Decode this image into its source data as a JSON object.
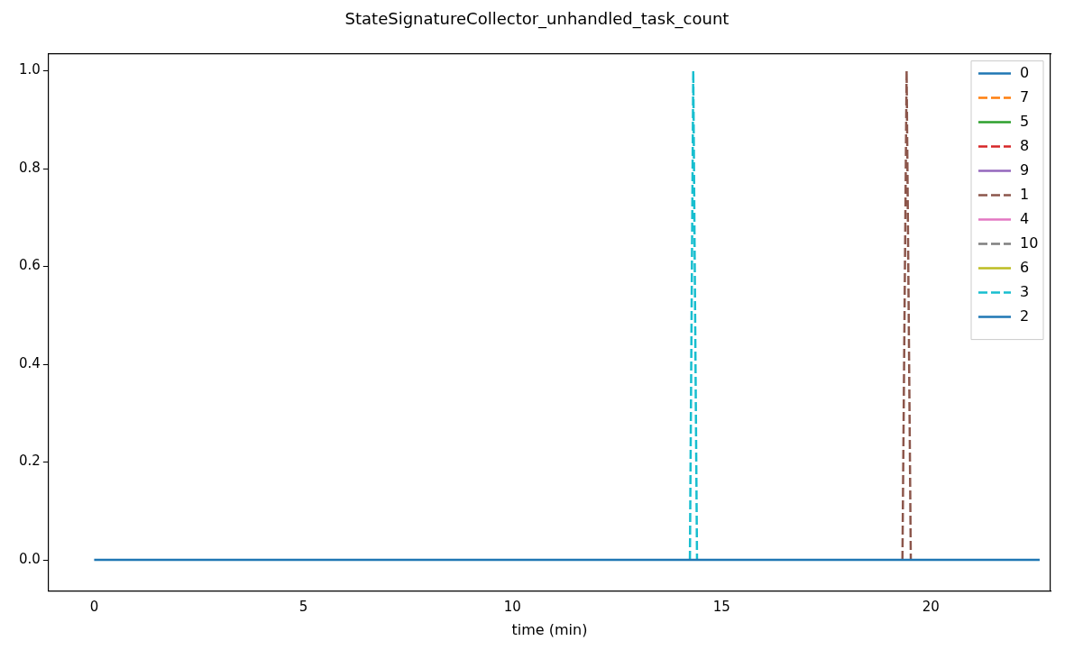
{
  "chart_data": {
    "type": "line",
    "title": "StateSignatureCollector_unhandled_task_count",
    "xlabel": "time (min)",
    "x": [
      0,
      14.24,
      14.32,
      14.41,
      19.32,
      19.42,
      19.52,
      22.6
    ],
    "series": [
      {
        "name": "0",
        "color": "#1f77b4",
        "line_style": "solid",
        "values": [
          null,
          null,
          null,
          null,
          null,
          null,
          null,
          null
        ]
      },
      {
        "name": "7",
        "color": "#ff7f0e",
        "line_style": "dashed",
        "values": [
          null,
          null,
          null,
          null,
          null,
          null,
          null,
          null
        ]
      },
      {
        "name": "5",
        "color": "#2ca02c",
        "line_style": "solid",
        "values": [
          null,
          null,
          null,
          null,
          null,
          null,
          null,
          null
        ]
      },
      {
        "name": "8",
        "color": "#d62728",
        "line_style": "dashed",
        "values": [
          null,
          null,
          null,
          null,
          null,
          null,
          null,
          null
        ]
      },
      {
        "name": "9",
        "color": "#9467bd",
        "line_style": "solid",
        "values": [
          null,
          null,
          null,
          null,
          null,
          null,
          null,
          null
        ]
      },
      {
        "name": "1",
        "color": "#8c564b",
        "line_style": "dashed",
        "values": [
          null,
          null,
          null,
          null,
          0,
          1,
          0,
          null
        ]
      },
      {
        "name": "4",
        "color": "#e377c2",
        "line_style": "solid",
        "values": [
          null,
          null,
          null,
          null,
          null,
          null,
          null,
          null
        ]
      },
      {
        "name": "10",
        "color": "#7f7f7f",
        "line_style": "dashed",
        "values": [
          null,
          null,
          null,
          null,
          null,
          null,
          null,
          null
        ]
      },
      {
        "name": "6",
        "color": "#bcbd22",
        "line_style": "solid",
        "values": [
          null,
          null,
          null,
          null,
          null,
          null,
          null,
          null
        ]
      },
      {
        "name": "3",
        "color": "#17becf",
        "line_style": "dashed",
        "values": [
          null,
          0,
          1,
          0,
          null,
          null,
          null,
          null
        ]
      },
      {
        "name": "2",
        "color": "#1f77b4",
        "line_style": "solid",
        "values": [
          0,
          0,
          0,
          0,
          0,
          0,
          0,
          0
        ]
      }
    ],
    "xlim": [
      -1.09,
      22.86
    ],
    "xticks": [
      0,
      5,
      10,
      15,
      20
    ],
    "ylim": [
      -0.064,
      1.035
    ],
    "yticks": [
      {
        "value": 0,
        "label": "0.0"
      },
      {
        "value": 0.2,
        "label": "0.2"
      },
      {
        "value": 0.4,
        "label": "0.4"
      },
      {
        "value": 0.6,
        "label": "0.6"
      },
      {
        "value": 0.8,
        "label": "0.8"
      },
      {
        "value": 1,
        "label": "1.0"
      }
    ],
    "grid": false,
    "legend": "top right"
  }
}
